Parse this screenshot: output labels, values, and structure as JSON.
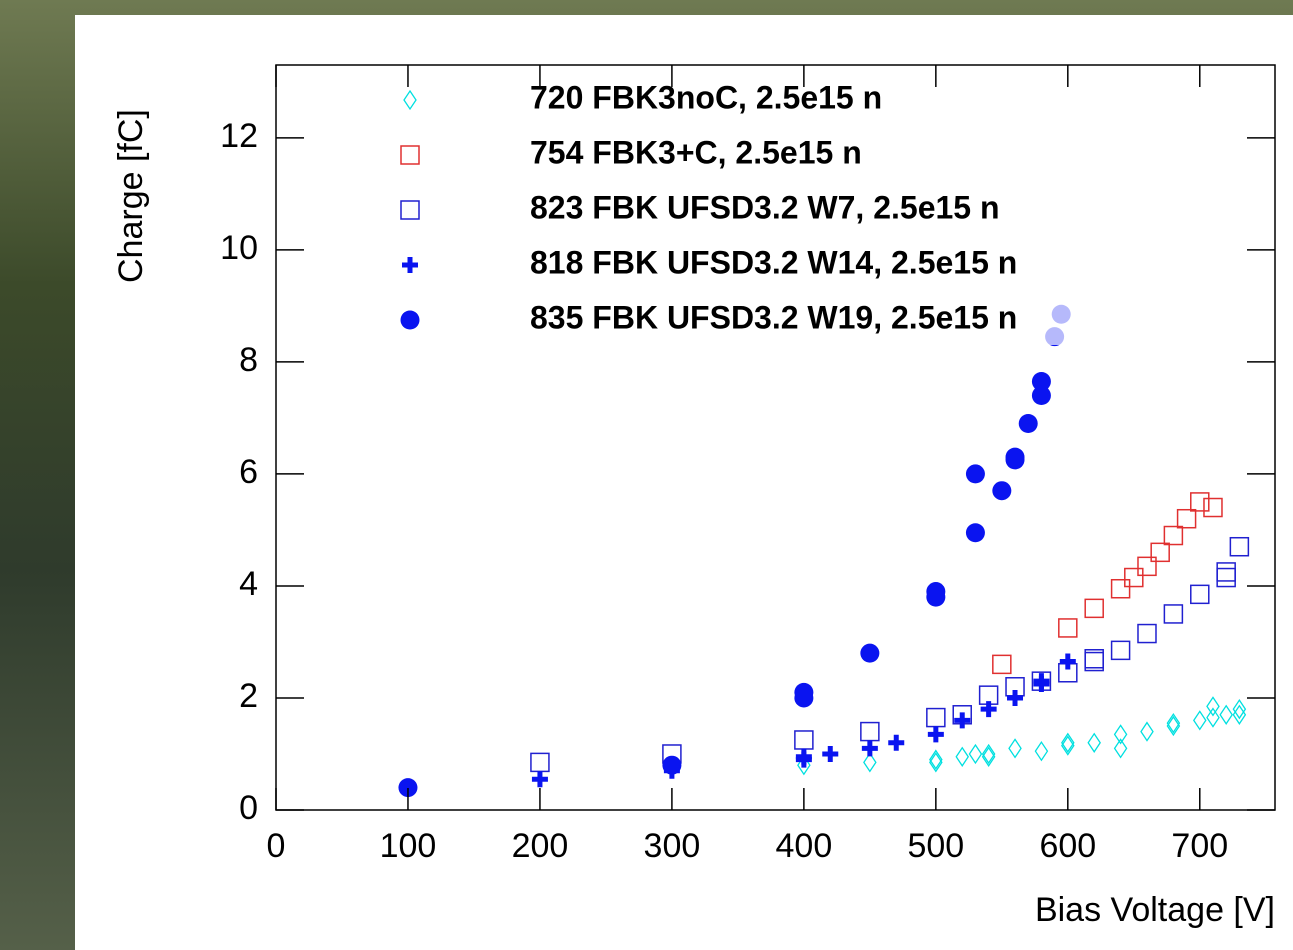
{
  "chart_data": {
    "type": "scatter",
    "xlabel": "Bias Voltage [V]",
    "ylabel": "Charge [fC]",
    "xlim": [
      0,
      757
    ],
    "ylim": [
      0,
      13.3
    ],
    "xticks": [
      0,
      100,
      200,
      300,
      400,
      500,
      600,
      700
    ],
    "yticks": [
      0,
      2,
      4,
      6,
      8,
      10,
      12
    ],
    "series": [
      {
        "name": "720 FBK3noC, 2.5e15 n",
        "color": "#00e0e0",
        "marker": "diamond",
        "x": [
          400,
          450,
          500,
          500,
          520,
          530,
          540,
          540,
          560,
          580,
          600,
          600,
          620,
          640,
          640,
          660,
          680,
          680,
          700,
          710,
          710,
          720,
          730,
          730
        ],
        "values": [
          0.8,
          0.85,
          0.9,
          0.85,
          0.95,
          1.0,
          0.95,
          1.0,
          1.1,
          1.05,
          1.15,
          1.2,
          1.2,
          1.1,
          1.35,
          1.4,
          1.5,
          1.55,
          1.6,
          1.65,
          1.85,
          1.7,
          1.7,
          1.8
        ]
      },
      {
        "name": "754 FBK3+C, 2.5e15 n",
        "color": "#e03030",
        "marker": "open-square",
        "x": [
          550,
          600,
          620,
          640,
          650,
          660,
          670,
          680,
          690,
          700,
          710
        ],
        "values": [
          2.6,
          3.25,
          3.6,
          3.95,
          4.15,
          4.35,
          4.6,
          4.9,
          5.2,
          5.5,
          5.4
        ]
      },
      {
        "name": "823 FBK UFSD3.2 W7, 2.5e15 n",
        "color": "#2020d0",
        "marker": "open-square",
        "x": [
          200,
          300,
          400,
          450,
          500,
          520,
          540,
          560,
          580,
          600,
          620,
          620,
          640,
          660,
          680,
          700,
          720,
          720,
          730
        ],
        "values": [
          0.85,
          1.0,
          1.25,
          1.4,
          1.65,
          1.7,
          2.05,
          2.2,
          2.3,
          2.45,
          2.65,
          2.7,
          2.85,
          3.15,
          3.5,
          3.85,
          4.15,
          4.25,
          4.7
        ]
      },
      {
        "name": "818 FBK UFSD3.2 W14, 2.5e15 n",
        "color": "#0a14f0",
        "marker": "plus",
        "x": [
          200,
          300,
          400,
          400,
          420,
          450,
          470,
          500,
          520,
          540,
          560,
          580,
          580,
          600
        ],
        "values": [
          0.55,
          0.7,
          0.9,
          0.95,
          1.0,
          1.1,
          1.2,
          1.35,
          1.6,
          1.8,
          2.0,
          2.25,
          2.3,
          2.65
        ]
      },
      {
        "name": "835 FBK UFSD3.2 W19, 2.5e15 n",
        "color": "#0a14f0",
        "marker": "circle",
        "x": [
          100,
          300,
          400,
          400,
          450,
          500,
          500,
          530,
          530,
          550,
          560,
          560,
          570,
          580,
          580,
          590,
          595
        ],
        "values": [
          0.4,
          0.8,
          2.0,
          2.1,
          2.8,
          3.8,
          3.9,
          4.95,
          6.0,
          5.7,
          6.25,
          6.3,
          6.9,
          7.4,
          7.65,
          8.45,
          8.85
        ]
      }
    ]
  }
}
